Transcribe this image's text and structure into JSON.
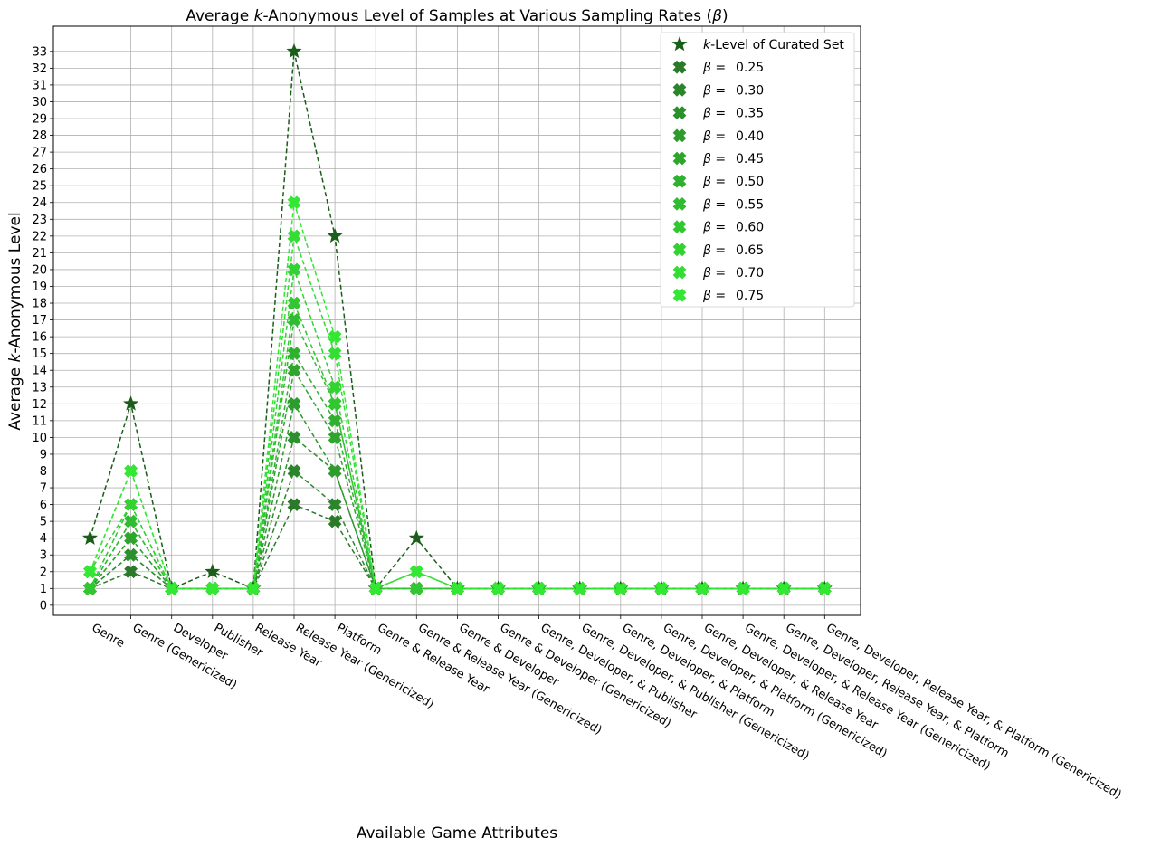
{
  "chart_data": {
    "type": "line",
    "title_parts": [
      "Average ",
      "k",
      "-Anonymous Level of Samples at Various Sampling Rates (",
      "β",
      ")"
    ],
    "xlabel": "Available Game Attributes",
    "ylabel_parts": [
      "Average ",
      "k",
      "-Anonymous Level"
    ],
    "categories": [
      "Genre",
      "Genre (Genericized)",
      "Developer",
      "Publisher",
      "Release Year",
      "Release Year (Genericized)",
      "Platform",
      "Genre & Release Year",
      "Genre & Release Year (Genericized)",
      "Genre & Developer",
      "Genre & Developer (Genericized)",
      "Genre, Developer, & Publisher",
      "Genre, Developer, & Publisher (Genericized)",
      "Genre, Developer, & Platform",
      "Genre, Developer, & Platform (Genericized)",
      "Genre, Developer, & Release Year",
      "Genre, Developer, & Release Year (Genericized)",
      "Genre, Developer, Release Year, & Platform",
      "Genre, Developer, Release Year, & Platform (Genericized)"
    ],
    "yticks": [
      0,
      1,
      2,
      3,
      4,
      5,
      6,
      7,
      8,
      9,
      10,
      11,
      12,
      13,
      14,
      15,
      16,
      17,
      18,
      19,
      20,
      21,
      22,
      23,
      24,
      25,
      26,
      27,
      28,
      29,
      30,
      31,
      32,
      33
    ],
    "ylim": [
      -0.6,
      34.5
    ],
    "grid": true,
    "legend_position": "top-right",
    "curated": {
      "name_parts": [
        "k",
        "-Level of Curated Set"
      ],
      "color": "#1a5e1a",
      "marker": "star",
      "values": [
        4,
        12,
        1,
        2,
        1,
        33,
        22,
        1,
        4,
        1,
        1,
        1,
        1,
        1,
        1,
        1,
        1,
        1,
        1
      ]
    },
    "series": [
      {
        "prefix": "β =",
        "value_label": "0.25",
        "color": "#2a7a2a",
        "values": [
          1,
          2,
          1,
          1,
          1,
          6,
          5,
          1,
          1,
          1,
          1,
          1,
          1,
          1,
          1,
          1,
          1,
          1,
          1
        ]
      },
      {
        "prefix": "β =",
        "value_label": "0.30",
        "color": "#2b852b",
        "values": [
          1,
          3,
          1,
          1,
          1,
          8,
          6,
          1,
          1,
          1,
          1,
          1,
          1,
          1,
          1,
          1,
          1,
          1,
          1
        ]
      },
      {
        "prefix": "β =",
        "value_label": "0.35",
        "color": "#2c902c",
        "values": [
          1,
          3,
          1,
          1,
          1,
          10,
          8,
          1,
          1,
          1,
          1,
          1,
          1,
          1,
          1,
          1,
          1,
          1,
          1
        ]
      },
      {
        "prefix": "β =",
        "value_label": "0.40",
        "color": "#2d9b2d",
        "values": [
          1,
          4,
          1,
          1,
          1,
          12,
          8,
          1,
          1,
          1,
          1,
          1,
          1,
          1,
          1,
          1,
          1,
          1,
          1
        ]
      },
      {
        "prefix": "β =",
        "value_label": "0.45",
        "color": "#2ea62e",
        "values": [
          1,
          4,
          1,
          1,
          1,
          14,
          10,
          1,
          1,
          1,
          1,
          1,
          1,
          1,
          1,
          1,
          1,
          1,
          1
        ]
      },
      {
        "prefix": "β =",
        "value_label": "0.50",
        "color": "#2fb12f",
        "values": [
          1,
          5,
          1,
          1,
          1,
          15,
          11,
          1,
          1,
          1,
          1,
          1,
          1,
          1,
          1,
          1,
          1,
          1,
          1
        ]
      },
      {
        "prefix": "β =",
        "value_label": "0.55",
        "color": "#30bc30",
        "values": [
          1,
          5,
          1,
          1,
          1,
          17,
          12,
          1,
          1,
          1,
          1,
          1,
          1,
          1,
          1,
          1,
          1,
          1,
          1
        ]
      },
      {
        "prefix": "β =",
        "value_label": "0.60",
        "color": "#31c731",
        "values": [
          1,
          6,
          1,
          1,
          1,
          18,
          12,
          1,
          1,
          1,
          1,
          1,
          1,
          1,
          1,
          1,
          1,
          1,
          1
        ]
      },
      {
        "prefix": "β =",
        "value_label": "0.65",
        "color": "#32d232",
        "values": [
          2,
          6,
          1,
          1,
          1,
          20,
          13,
          1,
          2,
          1,
          1,
          1,
          1,
          1,
          1,
          1,
          1,
          1,
          1
        ]
      },
      {
        "prefix": "β =",
        "value_label": "0.70",
        "color": "#33dd33",
        "values": [
          2,
          8,
          1,
          1,
          1,
          22,
          15,
          1,
          2,
          1,
          1,
          1,
          1,
          1,
          1,
          1,
          1,
          1,
          1
        ]
      },
      {
        "prefix": "β =",
        "value_label": "0.75",
        "color": "#33e833",
        "values": [
          2,
          8,
          1,
          1,
          1,
          24,
          16,
          1,
          2,
          1,
          1,
          1,
          1,
          1,
          1,
          1,
          1,
          1,
          1
        ]
      }
    ]
  }
}
